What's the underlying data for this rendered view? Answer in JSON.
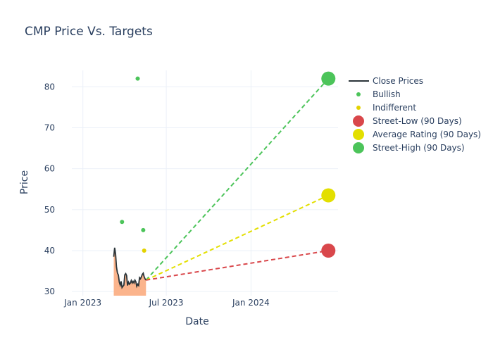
{
  "chart_data": {
    "type": "line",
    "title": "CMP Price Vs. Targets",
    "xlabel": "Date",
    "ylabel": "Price",
    "x_range": [
      "2022-12-08",
      "2024-07-08"
    ],
    "ylim": [
      29,
      84
    ],
    "x_ticks": [
      {
        "date": "2023-01-01",
        "label": "Jan 2023"
      },
      {
        "date": "2023-07-01",
        "label": "Jul 2023"
      },
      {
        "date": "2024-01-01",
        "label": "Jan 2024"
      }
    ],
    "y_ticks": [
      30,
      40,
      50,
      60,
      70,
      80
    ],
    "grid": true,
    "legend_position": "right",
    "colors": {
      "close": "#2a3439",
      "fill": "#fbb48c",
      "bullish": "#4cc45a",
      "indifferent": "#e3d200",
      "street_low": "#d9474b",
      "average": "#e3df00",
      "street_high": "#4cc45a"
    },
    "close_prices": [
      {
        "x": "2023-03-09",
        "y": 38.5
      },
      {
        "x": "2023-03-11",
        "y": 40.7
      },
      {
        "x": "2023-03-13",
        "y": 39.2
      },
      {
        "x": "2023-03-15",
        "y": 36.0
      },
      {
        "x": "2023-03-17",
        "y": 34.6
      },
      {
        "x": "2023-03-19",
        "y": 34.0
      },
      {
        "x": "2023-03-21",
        "y": 32.3
      },
      {
        "x": "2023-03-23",
        "y": 31.6
      },
      {
        "x": "2023-03-25",
        "y": 32.5
      },
      {
        "x": "2023-03-27",
        "y": 31.0
      },
      {
        "x": "2023-03-29",
        "y": 31.3
      },
      {
        "x": "2023-03-31",
        "y": 31.6
      },
      {
        "x": "2023-04-02",
        "y": 34.1
      },
      {
        "x": "2023-04-04",
        "y": 34.4
      },
      {
        "x": "2023-04-06",
        "y": 33.9
      },
      {
        "x": "2023-04-08",
        "y": 31.5
      },
      {
        "x": "2023-04-10",
        "y": 32.3
      },
      {
        "x": "2023-04-12",
        "y": 31.8
      },
      {
        "x": "2023-04-14",
        "y": 32.1
      },
      {
        "x": "2023-04-16",
        "y": 32.7
      },
      {
        "x": "2023-04-18",
        "y": 32.1
      },
      {
        "x": "2023-04-20",
        "y": 32.5
      },
      {
        "x": "2023-04-22",
        "y": 32.1
      },
      {
        "x": "2023-04-24",
        "y": 32.8
      },
      {
        "x": "2023-04-26",
        "y": 32.4
      },
      {
        "x": "2023-04-28",
        "y": 31.3
      },
      {
        "x": "2023-04-30",
        "y": 31.8
      },
      {
        "x": "2023-05-02",
        "y": 31.5
      },
      {
        "x": "2023-05-04",
        "y": 33.4
      },
      {
        "x": "2023-05-06",
        "y": 33.1
      },
      {
        "x": "2023-05-08",
        "y": 33.6
      },
      {
        "x": "2023-05-10",
        "y": 34.2
      },
      {
        "x": "2023-05-12",
        "y": 34.5
      },
      {
        "x": "2023-05-14",
        "y": 33.6
      },
      {
        "x": "2023-05-16",
        "y": 33.1
      },
      {
        "x": "2023-05-18",
        "y": 32.8
      }
    ],
    "bullish": [
      {
        "x": "2023-03-27",
        "y": 47
      },
      {
        "x": "2023-04-30",
        "y": 82
      },
      {
        "x": "2023-05-12",
        "y": 45
      }
    ],
    "indifferent": [
      {
        "x": "2023-05-14",
        "y": 40
      }
    ],
    "projection_start": {
      "x": "2023-05-18",
      "y": 32.8
    },
    "projection_date": "2024-06-17",
    "street_low": 40,
    "average_rating": 53.5,
    "street_high": 82,
    "legend": [
      {
        "key": "close",
        "label": "Close Prices",
        "kind": "line"
      },
      {
        "key": "bullish",
        "label": "Bullish",
        "kind": "dot"
      },
      {
        "key": "indifferent",
        "label": "Indifferent",
        "kind": "dot"
      },
      {
        "key": "street_low",
        "label": "Street-Low (90 Days)",
        "kind": "bigdot"
      },
      {
        "key": "average",
        "label": "Average Rating (90 Days)",
        "kind": "bigdot"
      },
      {
        "key": "street_high",
        "label": "Street-High (90 Days)",
        "kind": "bigdot"
      }
    ]
  }
}
